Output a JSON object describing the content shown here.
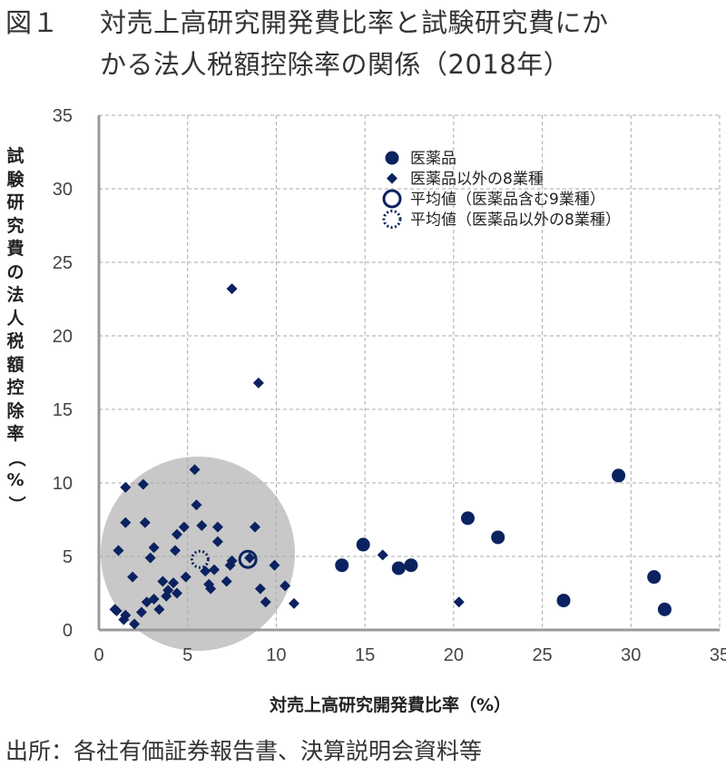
{
  "chart_data": {
    "type": "scatter",
    "title_label": "図１",
    "title_line1": "対売上高研究開発費比率と試験研究費にか",
    "title_line2": "かる法人税額控除率の関係（2018年）",
    "xlabel": "対売上高研究開発費比率（%）",
    "ylabel": "試験研究費の法人税額控除率（%）",
    "xlim": [
      0,
      35
    ],
    "ylim": [
      0,
      35
    ],
    "xticks": [
      "0",
      "5",
      "10",
      "15",
      "20",
      "25",
      "30",
      "35"
    ],
    "yticks": [
      "0",
      "5",
      "10",
      "15",
      "20",
      "25",
      "30",
      "35"
    ],
    "grid": true,
    "legend_position": "top-right",
    "color": "#0b2260",
    "highlight_color": "#c8c8c8",
    "series": [
      {
        "name": "医薬品",
        "marker": "circle",
        "points": [
          [
            13.7,
            4.4
          ],
          [
            14.9,
            5.8
          ],
          [
            16.9,
            4.2
          ],
          [
            17.6,
            4.4
          ],
          [
            20.8,
            7.6
          ],
          [
            22.5,
            6.3
          ],
          [
            26.2,
            2.0
          ],
          [
            29.3,
            10.5
          ],
          [
            31.3,
            3.6
          ],
          [
            31.9,
            1.4
          ]
        ]
      },
      {
        "name": "医薬品以外の8業種",
        "marker": "diamond",
        "points": [
          [
            7.5,
            23.2
          ],
          [
            9.0,
            16.8
          ],
          [
            5.4,
            10.9
          ],
          [
            1.5,
            9.7
          ],
          [
            2.5,
            9.9
          ],
          [
            5.5,
            8.5
          ],
          [
            1.5,
            7.3
          ],
          [
            2.6,
            7.3
          ],
          [
            4.8,
            7.0
          ],
          [
            4.4,
            6.5
          ],
          [
            5.8,
            7.1
          ],
          [
            6.7,
            7.0
          ],
          [
            8.8,
            7.0
          ],
          [
            6.7,
            6.0
          ],
          [
            1.1,
            5.4
          ],
          [
            3.1,
            5.6
          ],
          [
            2.9,
            4.9
          ],
          [
            4.3,
            5.4
          ],
          [
            7.5,
            4.7
          ],
          [
            7.4,
            4.4
          ],
          [
            8.5,
            4.9
          ],
          [
            9.9,
            4.4
          ],
          [
            6.0,
            4.0
          ],
          [
            6.5,
            4.1
          ],
          [
            4.9,
            3.6
          ],
          [
            1.9,
            3.6
          ],
          [
            3.6,
            3.3
          ],
          [
            4.2,
            3.2
          ],
          [
            6.2,
            3.1
          ],
          [
            6.3,
            2.8
          ],
          [
            7.2,
            3.3
          ],
          [
            9.1,
            2.8
          ],
          [
            10.5,
            3.0
          ],
          [
            3.9,
            2.7
          ],
          [
            4.4,
            2.5
          ],
          [
            3.8,
            2.3
          ],
          [
            3.1,
            2.1
          ],
          [
            2.7,
            1.9
          ],
          [
            3.4,
            1.4
          ],
          [
            2.4,
            1.2
          ],
          [
            9.4,
            1.9
          ],
          [
            11.0,
            1.8
          ],
          [
            0.9,
            1.4
          ],
          [
            1.0,
            1.3
          ],
          [
            1.5,
            1.0
          ],
          [
            1.4,
            0.7
          ],
          [
            2.0,
            0.4
          ],
          [
            16.0,
            5.1
          ],
          [
            20.3,
            1.9
          ]
        ]
      },
      {
        "name": "平均値（医薬品含む9業種）",
        "marker": "open-circle",
        "points": [
          [
            8.4,
            4.8
          ]
        ]
      },
      {
        "name": "平均値（医薬品以外の8業種）",
        "marker": "dotted-circle",
        "points": [
          [
            5.7,
            4.8
          ]
        ]
      }
    ]
  },
  "source": "出所：各社有価証券報告書、決算説明会資料等"
}
